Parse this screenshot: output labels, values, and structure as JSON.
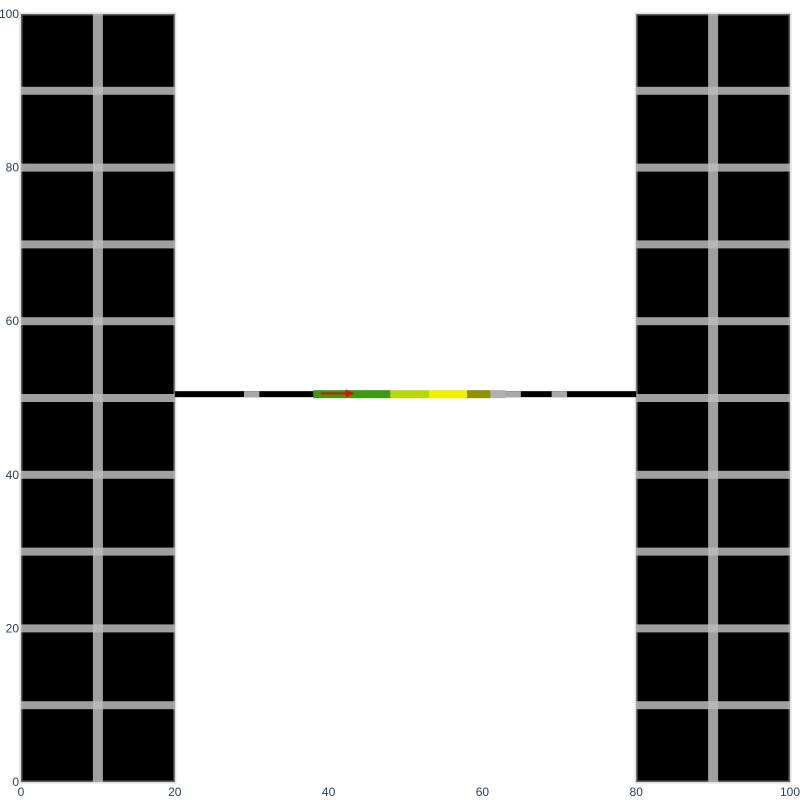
{
  "chart_data": {
    "type": "heatmap",
    "title": "",
    "xlabel": "",
    "ylabel": "",
    "xlim": [
      0,
      100
    ],
    "ylim": [
      0,
      100
    ],
    "x_ticks": [
      {
        "value": 0,
        "label": "0"
      },
      {
        "value": 20,
        "label": "20"
      },
      {
        "value": 40,
        "label": "40"
      },
      {
        "value": 60,
        "label": "60"
      },
      {
        "value": 80,
        "label": "80"
      },
      {
        "value": 100,
        "label": "100"
      }
    ],
    "y_ticks": [
      {
        "value": 0,
        "label": "0"
      },
      {
        "value": 20,
        "label": "20"
      },
      {
        "value": 40,
        "label": "40"
      },
      {
        "value": 60,
        "label": "60"
      },
      {
        "value": 80,
        "label": "80"
      },
      {
        "value": 100,
        "label": "100"
      }
    ],
    "grid": false,
    "blocks": [
      {
        "name": "left-block",
        "x": [
          0,
          20
        ],
        "y": [
          0,
          100
        ],
        "col_dividers": [
          10
        ],
        "row_dividers": [
          10,
          20,
          30,
          40,
          50,
          60,
          70,
          80,
          90
        ],
        "fill": "#000000",
        "divider_color": "#bbbbbb"
      },
      {
        "name": "right-block",
        "x": [
          80,
          100
        ],
        "y": [
          0,
          100
        ],
        "col_dividers": [
          90
        ],
        "row_dividers": [
          10,
          20,
          30,
          40,
          50,
          60,
          70,
          80,
          90
        ],
        "fill": "#000000",
        "divider_color": "#bbbbbb"
      }
    ],
    "bridge": {
      "x": [
        20,
        80
      ],
      "y": 50.5,
      "color": "#000000"
    },
    "bridge_gaps": [
      [
        29,
        31
      ],
      [
        41,
        43
      ],
      [
        57,
        59
      ],
      [
        63,
        65
      ],
      [
        69,
        71
      ]
    ],
    "path_segments": [
      {
        "x": [
          38,
          48
        ],
        "color": "#3a9a10"
      },
      {
        "x": [
          48,
          53
        ],
        "color": "#b8d80a"
      },
      {
        "x": [
          53,
          58
        ],
        "color": "#f0f000"
      },
      {
        "x": [
          58,
          61
        ],
        "color": "#909000"
      },
      {
        "x": [
          61,
          63
        ],
        "color": "#b0b0b0"
      }
    ],
    "arrow": {
      "x": [
        39,
        43
      ],
      "y": 50.6,
      "color": "#dd1111"
    }
  }
}
